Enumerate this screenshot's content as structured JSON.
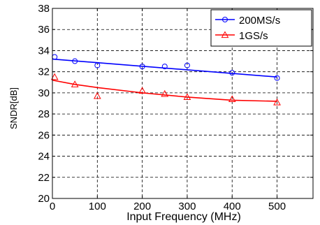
{
  "chart_data": {
    "type": "scatter",
    "xlabel": "Input Frequency (MHz)",
    "ylabel": "SNDR[dB]",
    "xlim": [
      0,
      580
    ],
    "ylim": [
      20,
      38
    ],
    "x_ticks": [
      0,
      100,
      200,
      300,
      400,
      500
    ],
    "y_ticks": [
      20,
      22,
      24,
      26,
      28,
      30,
      32,
      34,
      36,
      38
    ],
    "grid": true,
    "grid_style": "dashed",
    "legend_position": "top-right",
    "series": [
      {
        "name": "200MS/s",
        "marker": "circle",
        "color": "#0000ff",
        "x": [
          5,
          50,
          100,
          200,
          250,
          300,
          400,
          500
        ],
        "y": [
          33.4,
          33.0,
          32.6,
          32.5,
          32.5,
          32.6,
          31.9,
          31.4
        ],
        "fit": {
          "x": [
            0,
            500
          ],
          "y": [
            33.2,
            31.5
          ]
        }
      },
      {
        "name": "1GS/s",
        "marker": "triangle",
        "color": "#ff0000",
        "x": [
          5,
          50,
          100,
          200,
          250,
          300,
          400,
          500
        ],
        "y": [
          31.5,
          30.8,
          29.7,
          30.2,
          29.9,
          29.6,
          29.4,
          29.1
        ],
        "fit": {
          "x": [
            0,
            50,
            100,
            200,
            300,
            400,
            500
          ],
          "y": [
            31.2,
            30.8,
            30.5,
            30.0,
            29.6,
            29.3,
            29.2
          ]
        }
      }
    ]
  }
}
